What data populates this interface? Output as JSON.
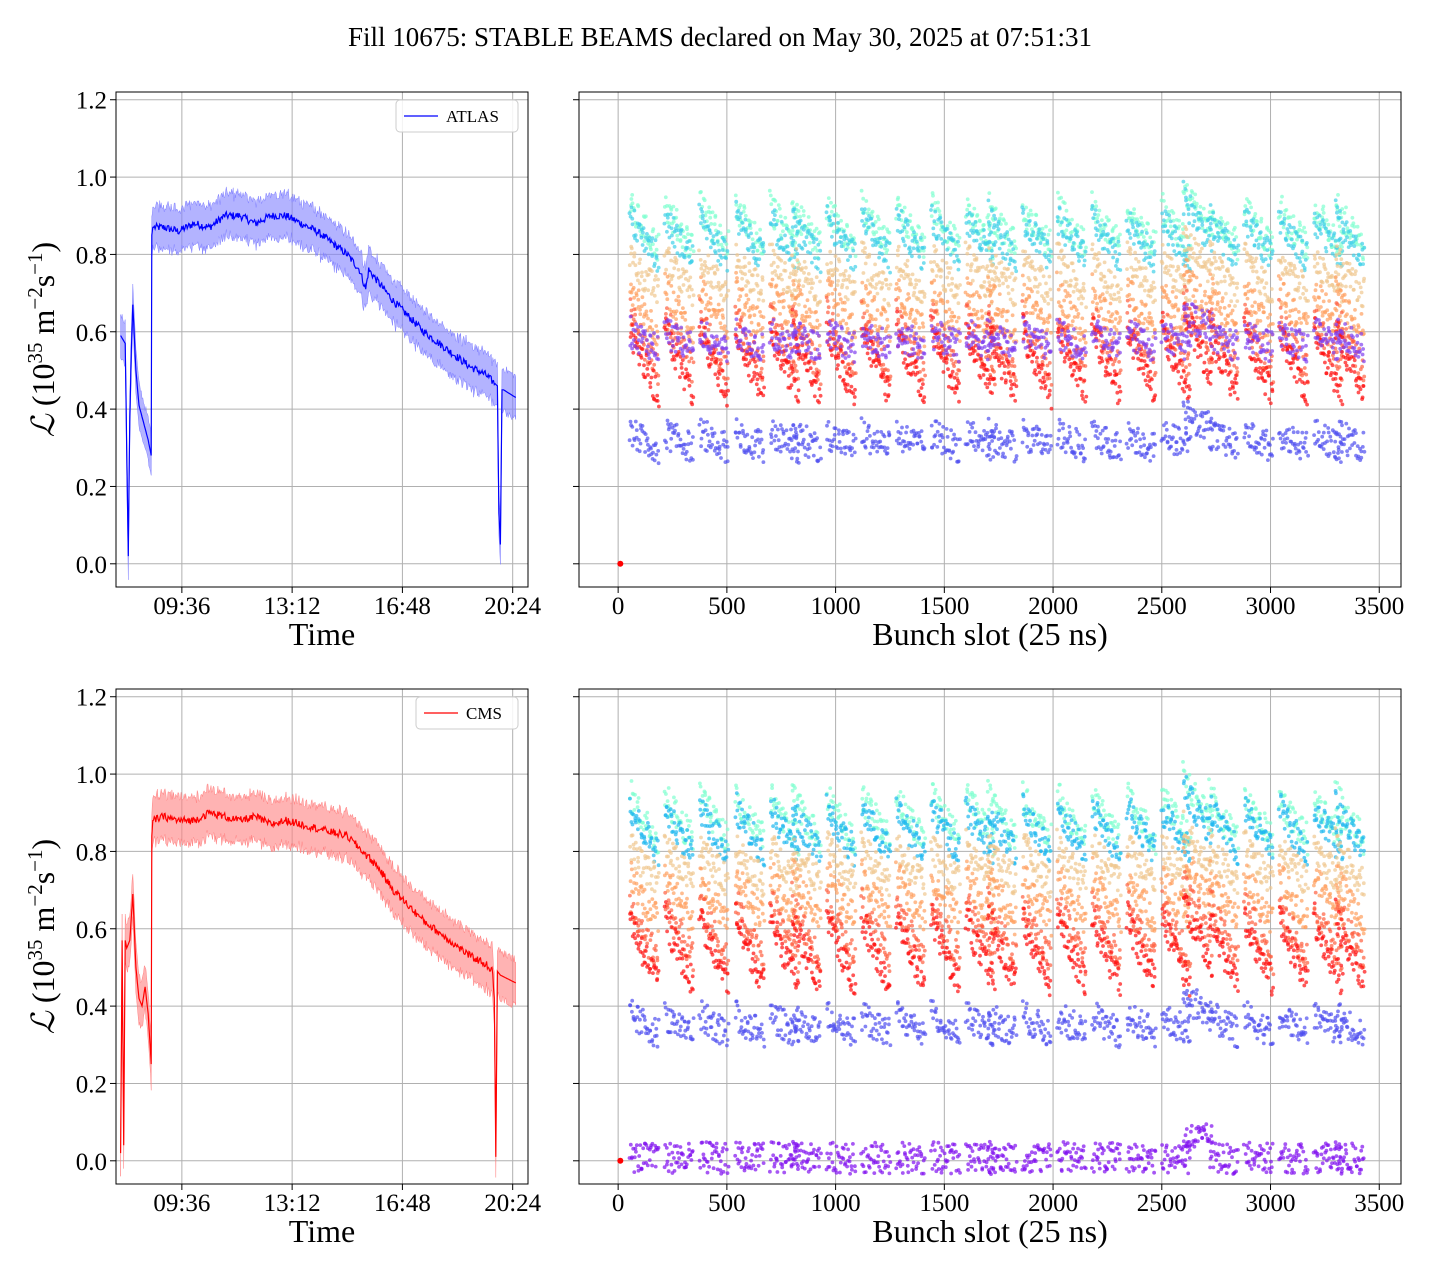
{
  "suptitle": "Fill 10675: STABLE BEAMS declared on May 30, 2025 at 07:51:31",
  "chart_data": [
    {
      "id": "atlas-time",
      "type": "line",
      "experiment": "ATLAS",
      "legend": {
        "label": "ATLAS",
        "location": "upper right"
      },
      "color": "#0000ff",
      "band_color": "#8080ff",
      "xlabel": "Time",
      "ylabel_symbol": "ℒ",
      "ylabel_unit": "(10",
      "ylabel_exp": "35",
      "ylabel_rest": " m",
      "ylabel_exp2": "−2",
      "ylabel_s": "s",
      "ylabel_exp3": "−1",
      "ylabel_close": ")",
      "x_tick_labels": [
        "09:36",
        "13:12",
        "16:48",
        "20:24"
      ],
      "x_ticks_hours": [
        9.6,
        13.2,
        16.8,
        20.4
      ],
      "xlim_hours": [
        7.45,
        20.9
      ],
      "y_ticks": [
        "0.0",
        "0.2",
        "0.4",
        "0.6",
        "0.8",
        "1.0",
        "1.2"
      ],
      "ylim": [
        -0.06,
        1.22
      ],
      "grid": true,
      "series_time_hours": [
        7.6,
        7.75,
        7.85,
        7.9,
        7.95,
        8.0,
        8.1,
        8.2,
        8.3,
        8.5,
        8.6,
        8.62,
        8.65,
        9.0,
        9.5,
        10.0,
        10.5,
        11.0,
        11.5,
        12.0,
        12.5,
        13.0,
        13.5,
        14.0,
        14.5,
        15.0,
        15.4,
        15.6,
        15.7,
        16.0,
        16.5,
        17.0,
        17.5,
        18.0,
        18.5,
        19.0,
        19.5,
        19.9,
        19.95,
        20.0,
        20.05,
        20.1,
        20.3,
        20.5
      ],
      "series_values": [
        0.59,
        0.57,
        0.02,
        0.38,
        0.55,
        0.67,
        0.5,
        0.41,
        0.38,
        0.32,
        0.28,
        0.85,
        0.87,
        0.87,
        0.86,
        0.88,
        0.87,
        0.9,
        0.9,
        0.88,
        0.9,
        0.9,
        0.88,
        0.86,
        0.83,
        0.8,
        0.76,
        0.71,
        0.76,
        0.73,
        0.68,
        0.64,
        0.6,
        0.57,
        0.54,
        0.51,
        0.49,
        0.46,
        0.13,
        0.05,
        0.45,
        0.45,
        0.44,
        0.43
      ],
      "band_halfwidth": 0.055
    },
    {
      "id": "atlas-bunch",
      "type": "scatter",
      "experiment": "ATLAS",
      "xlabel": "Bunch slot (25 ns)",
      "x_ticks": [
        "0",
        "500",
        "1000",
        "1500",
        "2000",
        "2500",
        "3000",
        "3500"
      ],
      "xlim": [
        -180,
        3600
      ],
      "ylim": [
        -0.06,
        1.22
      ],
      "grid": true,
      "trains_start_slots": [
        55,
        215,
        375,
        540,
        700,
        800,
        960,
        1120,
        1280,
        1440,
        1600,
        1700,
        1860,
        2020,
        2180,
        2340,
        2500,
        2600,
        2720,
        2880,
        3040,
        3200,
        3300
      ],
      "train_length_slots": 130,
      "levels": [
        {
          "label": "",
          "color": "#80ffd0",
          "high": 0.93,
          "low": 0.82
        },
        {
          "label": "",
          "color": "#40d0e8",
          "high": 0.9,
          "low": 0.79
        },
        {
          "label": "",
          "color": "#f0c890",
          "high": 0.8,
          "low": 0.7
        },
        {
          "label": "",
          "color": "#ffa060",
          "high": 0.72,
          "low": 0.6
        },
        {
          "label": "",
          "color": "#ff6040",
          "high": 0.65,
          "low": 0.5
        },
        {
          "label": "",
          "color": "#ff1010",
          "high": 0.62,
          "low": 0.44
        },
        {
          "label": "",
          "color": "#8040f0",
          "high": 0.6,
          "low": 0.56
        },
        {
          "label": "",
          "color": "#5050f0",
          "high": 0.34,
          "low": 0.3
        }
      ],
      "spike_at_slot": 2600,
      "origin_point": {
        "x": 10,
        "y": 0.0,
        "color": "#ff0000"
      }
    },
    {
      "id": "cms-time",
      "type": "line",
      "experiment": "CMS",
      "legend": {
        "label": "CMS",
        "location": "upper right"
      },
      "color": "#ff0000",
      "band_color": "#ff8080",
      "xlabel": "Time",
      "ylabel_symbol": "ℒ",
      "ylabel_unit": "(10",
      "ylabel_exp": "35",
      "ylabel_rest": " m",
      "ylabel_exp2": "−2",
      "ylabel_s": "s",
      "ylabel_exp3": "−1",
      "ylabel_close": ")",
      "x_tick_labels": [
        "09:36",
        "13:12",
        "16:48",
        "20:24"
      ],
      "x_ticks_hours": [
        9.6,
        13.2,
        16.8,
        20.4
      ],
      "xlim_hours": [
        7.45,
        20.9
      ],
      "y_ticks": [
        "0.0",
        "0.2",
        "0.4",
        "0.6",
        "0.8",
        "1.0",
        "1.2"
      ],
      "ylim": [
        -0.06,
        1.22
      ],
      "grid": true,
      "series_time_hours": [
        7.6,
        7.65,
        7.7,
        7.75,
        7.8,
        7.9,
        8.0,
        8.1,
        8.2,
        8.3,
        8.4,
        8.5,
        8.6,
        8.62,
        8.65,
        9.0,
        9.5,
        10.0,
        10.5,
        11.0,
        11.5,
        12.0,
        12.5,
        13.0,
        13.5,
        14.0,
        14.5,
        15.0,
        15.5,
        16.0,
        16.5,
        17.0,
        17.5,
        18.0,
        18.5,
        19.0,
        19.5,
        19.75,
        19.8,
        19.85,
        19.9,
        20.0,
        20.5
      ],
      "series_values": [
        0.02,
        0.57,
        0.04,
        0.57,
        0.55,
        0.57,
        0.69,
        0.5,
        0.42,
        0.4,
        0.45,
        0.38,
        0.25,
        0.84,
        0.88,
        0.89,
        0.88,
        0.88,
        0.9,
        0.89,
        0.88,
        0.89,
        0.87,
        0.88,
        0.87,
        0.86,
        0.85,
        0.84,
        0.8,
        0.76,
        0.7,
        0.66,
        0.62,
        0.59,
        0.56,
        0.53,
        0.51,
        0.49,
        0.42,
        0.01,
        0.49,
        0.48,
        0.46
      ],
      "band_halfwidth": 0.06
    },
    {
      "id": "cms-bunch",
      "type": "scatter",
      "experiment": "CMS",
      "xlabel": "Bunch slot (25 ns)",
      "x_ticks": [
        "0",
        "500",
        "1000",
        "1500",
        "2000",
        "2500",
        "3000",
        "3500"
      ],
      "xlim": [
        -180,
        3600
      ],
      "ylim": [
        -0.06,
        1.22
      ],
      "grid": true,
      "trains_start_slots": [
        55,
        215,
        375,
        540,
        700,
        800,
        960,
        1120,
        1280,
        1440,
        1600,
        1700,
        1860,
        2020,
        2180,
        2340,
        2500,
        2600,
        2720,
        2880,
        3040,
        3200,
        3300
      ],
      "train_length_slots": 130,
      "levels": [
        {
          "label": "",
          "color": "#80ffd0",
          "high": 0.95,
          "low": 0.83
        },
        {
          "label": "",
          "color": "#20b8f0",
          "high": 0.92,
          "low": 0.8
        },
        {
          "label": "",
          "color": "#f0c890",
          "high": 0.82,
          "low": 0.72
        },
        {
          "label": "",
          "color": "#ffa060",
          "high": 0.75,
          "low": 0.62
        },
        {
          "label": "",
          "color": "#ff6040",
          "high": 0.68,
          "low": 0.52
        },
        {
          "label": "",
          "color": "#ff1010",
          "high": 0.64,
          "low": 0.46
        },
        {
          "label": "",
          "color": "#5050f0",
          "high": 0.38,
          "low": 0.33
        },
        {
          "label": "",
          "color": "#8010f0",
          "high": 0.01,
          "low": 0.005
        }
      ],
      "spike_at_slot": 2600,
      "origin_point": {
        "x": 10,
        "y": 0.0,
        "color": "#ff0000"
      }
    }
  ]
}
